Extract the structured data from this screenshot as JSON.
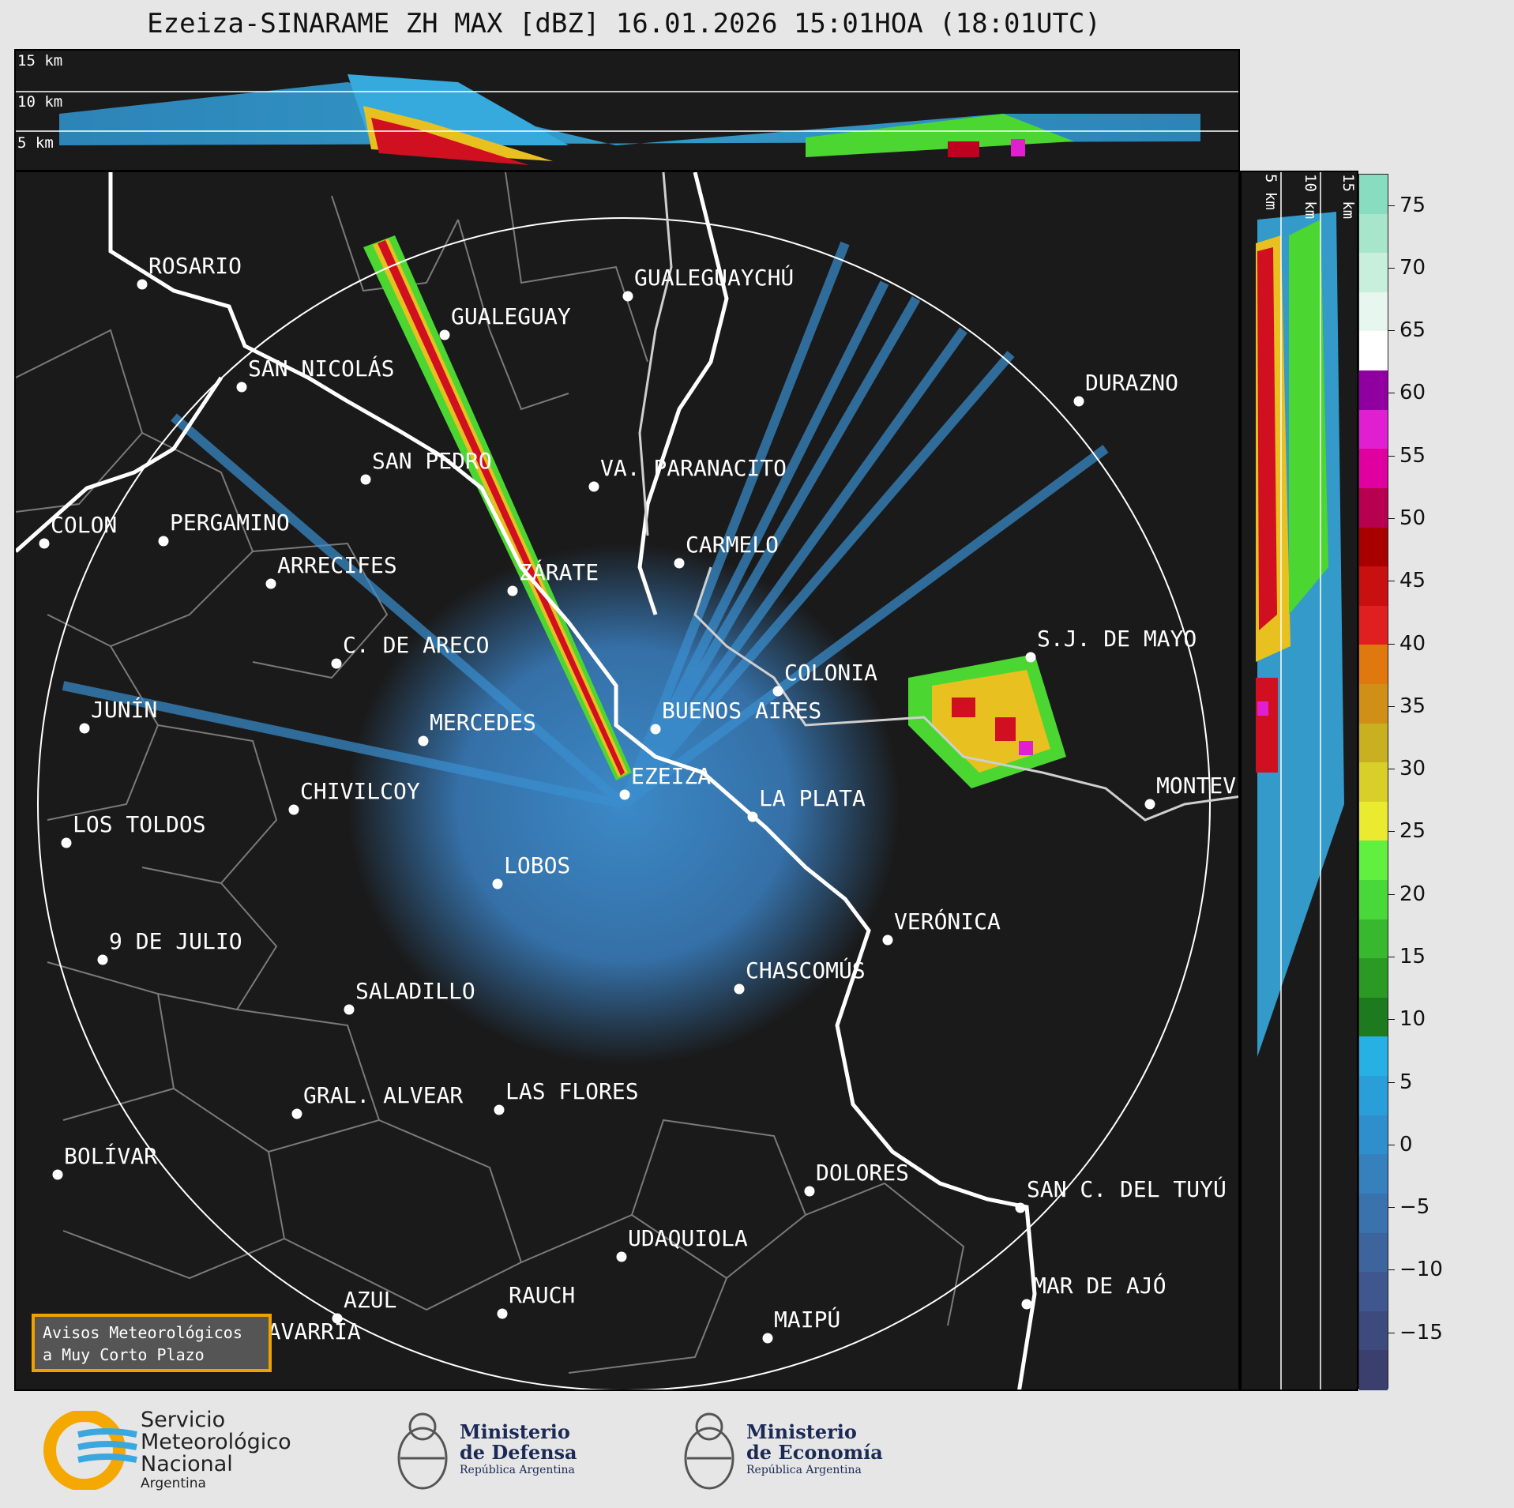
{
  "title": "Ezeiza-SINARAME ZH MAX [dBZ] 16.01.2026 15:01HOA (18:01UTC)",
  "top_panel": {
    "altitudes": [
      "15 km",
      "10 km",
      "5 km"
    ]
  },
  "side_panel": {
    "altitudes": [
      "5 km",
      "10 km",
      "15 km"
    ]
  },
  "colorbar": {
    "ticks": [
      "75",
      "70",
      "65",
      "60",
      "55",
      "50",
      "45",
      "40",
      "35",
      "30",
      "25",
      "20",
      "15",
      "10",
      "5",
      "0",
      "−5",
      "−10",
      "−15"
    ]
  },
  "cities": [
    {
      "name": "ROSARIO"
    },
    {
      "name": "GUALEGUAYCHÚ"
    },
    {
      "name": "GUALEGUAY"
    },
    {
      "name": "SAN NICOLÁS"
    },
    {
      "name": "DURAZNO"
    },
    {
      "name": "SAN PEDRO"
    },
    {
      "name": "VA. PARANACITO"
    },
    {
      "name": "COLON"
    },
    {
      "name": "PERGAMINO"
    },
    {
      "name": "CARMELO"
    },
    {
      "name": "ARRECIFES"
    },
    {
      "name": "ZÁRATE"
    },
    {
      "name": "S.J. DE MAYO"
    },
    {
      "name": "C. DE ARECO"
    },
    {
      "name": "COLONIA"
    },
    {
      "name": "BUENOS AIRES"
    },
    {
      "name": "JUNÍN"
    },
    {
      "name": "MERCEDES"
    },
    {
      "name": "EZEIZA"
    },
    {
      "name": "CHIVILCOY"
    },
    {
      "name": "LA PLATA"
    },
    {
      "name": "MONTEV"
    },
    {
      "name": "LOS TOLDOS"
    },
    {
      "name": "LOBOS"
    },
    {
      "name": "VERÓNICA"
    },
    {
      "name": "9 DE JULIO"
    },
    {
      "name": "CHASCOMÚS"
    },
    {
      "name": "SALADILLO"
    },
    {
      "name": "GRAL. ALVEAR"
    },
    {
      "name": "LAS FLORES"
    },
    {
      "name": "BOLÍVAR"
    },
    {
      "name": "DOLORES"
    },
    {
      "name": "SAN C. DEL TUYÚ"
    },
    {
      "name": "UDAQUIOLA"
    },
    {
      "name": "MAR DE AJÓ"
    },
    {
      "name": "AZUL"
    },
    {
      "name": "RAUCH"
    },
    {
      "name": "OLAVARRÍA"
    },
    {
      "name": "MAIPÚ"
    }
  ],
  "avisos": {
    "line1": "Avisos Meteorológicos",
    "line2": "a Muy Corto Plazo"
  },
  "logos": {
    "smn": {
      "line1": "Servicio",
      "line2": "Meteorológico",
      "line3": "Nacional",
      "line4": "Argentina"
    },
    "defensa": {
      "line1": "Ministerio",
      "line2": "de Defensa",
      "line3": "República Argentina"
    },
    "economia": {
      "line1": "Ministerio",
      "line2": "de Economía",
      "line3": "República Argentina"
    }
  },
  "colors": {
    "panel_bg": "#1a1a1a",
    "accent_orange": "#f0a000",
    "logo_blue": "#1b2a55"
  }
}
